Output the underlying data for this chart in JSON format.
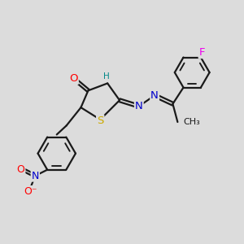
{
  "bg_color": "#dcdcdc",
  "bond_color": "#1a1a1a",
  "bond_width": 1.6,
  "atom_colors": {
    "O": "#ff0000",
    "N": "#0000cc",
    "S": "#ccaa00",
    "F": "#ee00ee",
    "H": "#008888",
    "C": "#1a1a1a"
  },
  "font_size": 8.5,
  "fig_size": [
    3.0,
    3.0
  ],
  "dpi": 100
}
